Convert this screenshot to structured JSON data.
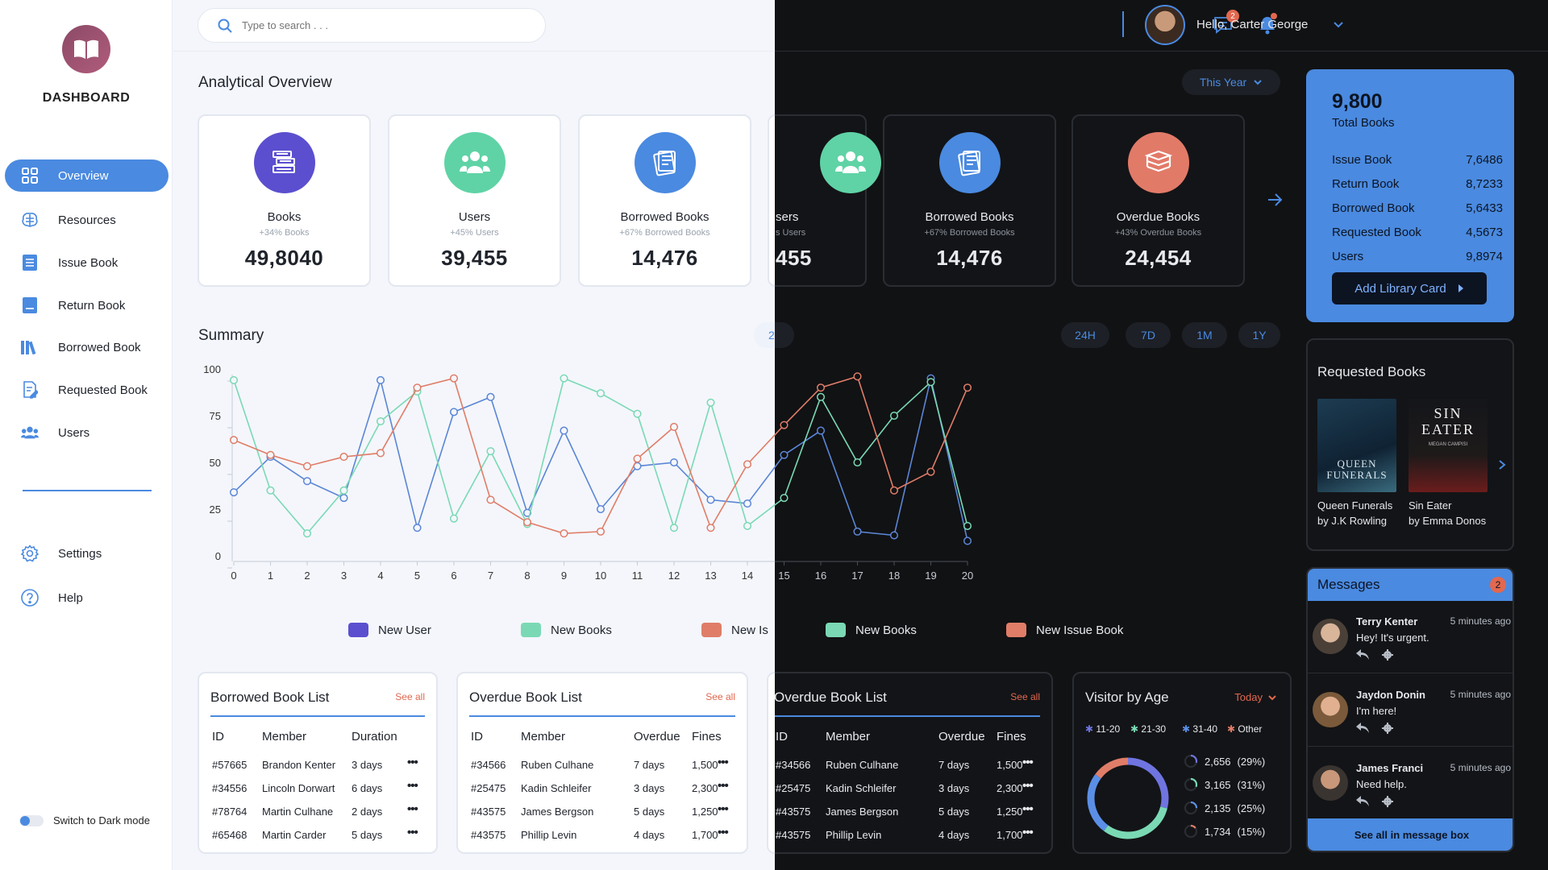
{
  "app": {
    "brand": "DASHBOARD",
    "toggle_label": "Switch to Dark mode"
  },
  "sidebar": {
    "items": [
      {
        "label": "Overview",
        "icon": "grid-icon"
      },
      {
        "label": "Resources",
        "icon": "brain-icon"
      },
      {
        "label": "Issue Book",
        "icon": "list-icon"
      },
      {
        "label": "Return Book",
        "icon": "book-return-icon"
      },
      {
        "label": "Borrowed Book",
        "icon": "library-icon"
      },
      {
        "label": "Requested Book",
        "icon": "edit-doc-icon"
      },
      {
        "label": "Users",
        "icon": "users-icon"
      },
      {
        "label": "Settings",
        "icon": "gear-icon"
      },
      {
        "label": "Help",
        "icon": "help-icon"
      }
    ]
  },
  "topbar": {
    "search_placeholder": "Type to search . . .",
    "greeting": "Hello, Carter George",
    "message_badge": "2"
  },
  "overview": {
    "title": "Analytical Overview",
    "period": "This Year",
    "cards": [
      {
        "label": "Books",
        "sub": "+34% Books",
        "value": "49,8040",
        "color": "#5b4fcf"
      },
      {
        "label": "Users",
        "sub": "+45% Users",
        "value": "39,455",
        "color": "#5fd3a6"
      },
      {
        "label": "Borrowed Books",
        "sub": "+67% Borrowed Books",
        "value": "14,476",
        "color": "#4a8ae0"
      },
      {
        "label": "Overdue Books",
        "sub": "+43% Overdue Books",
        "value": "24,454",
        "color": "#e27a68"
      }
    ],
    "dark_card_fragment": {
      "label": "sers",
      "sub": "s Users",
      "value": "455"
    }
  },
  "summary": {
    "title": "Summary",
    "ranges": [
      "24H",
      "7D",
      "1M",
      "1Y"
    ],
    "partial_range_char": "2"
  },
  "chart_data": {
    "type": "line",
    "title": "Summary",
    "x": [
      0,
      1,
      2,
      3,
      4,
      5,
      6,
      7,
      8,
      9,
      10,
      11,
      12,
      13,
      14,
      15,
      16,
      17,
      18,
      19,
      20
    ],
    "ylim": [
      0,
      100
    ],
    "yticks": [
      0,
      25,
      50,
      75,
      100
    ],
    "series": [
      {
        "name": "New User",
        "color": "#5b86d6",
        "values": [
          37,
          56,
          43,
          34,
          97,
          18,
          80,
          88,
          26,
          70,
          28,
          51,
          53,
          33,
          31,
          57,
          70,
          16,
          14,
          98,
          11
        ]
      },
      {
        "name": "New Books",
        "color": "#7ad9b4",
        "values": [
          97,
          38,
          15,
          38,
          75,
          91,
          23,
          59,
          20,
          98,
          90,
          79,
          18,
          85,
          19,
          34,
          88,
          53,
          78,
          96,
          19
        ]
      },
      {
        "name": "New Issue Book",
        "color": "#e07d68",
        "values": [
          65,
          57,
          51,
          56,
          58,
          93,
          98,
          33,
          21,
          15,
          16,
          55,
          72,
          18,
          52,
          73,
          93,
          99,
          38,
          48,
          93
        ]
      }
    ],
    "legend_visible": {
      "light": [
        "New User",
        "New Books",
        "New Is"
      ],
      "dark": [
        "New Books",
        "New Issue Book"
      ]
    }
  },
  "totals": {
    "value": "9,800",
    "caption": "Total Books",
    "rows": [
      {
        "label": "Issue Book",
        "value": "7,6486"
      },
      {
        "label": "Return Book",
        "value": "8,7233"
      },
      {
        "label": "Borrowed Book",
        "value": "5,6433"
      },
      {
        "label": "Requested Book",
        "value": "4,5673"
      },
      {
        "label": "Users",
        "value": "9,8974"
      }
    ],
    "button": "Add Library Card"
  },
  "requested": {
    "title": "Requested Books",
    "books": [
      {
        "title": "Queen Funerals",
        "author": "by J.K Rowling",
        "cover_text": "QUEEN\nFUNERALS"
      },
      {
        "title": "Sin Eater",
        "author": "by Emma Donos",
        "cover_text": "SIN\nEATER",
        "cover_sub": "MEGAN CAMPISI"
      }
    ]
  },
  "messages": {
    "title": "Messages",
    "badge": "2",
    "items": [
      {
        "name": "Terry Kenter",
        "time": "5 minutes ago",
        "text": "Hey! It's urgent."
      },
      {
        "name": "Jaydon Donin",
        "time": "5 minutes ago",
        "text": "I'm here!"
      },
      {
        "name": "James Franci",
        "time": "5 minutes ago",
        "text": "Need help."
      }
    ],
    "see_all": "See all in message box"
  },
  "borrowed_list": {
    "title": "Borrowed Book List",
    "see_all": "See all",
    "headers": [
      "ID",
      "Member",
      "Duration"
    ],
    "rows": [
      [
        "#57665",
        "Brandon Kenter",
        "3 days"
      ],
      [
        "#34556",
        "Lincoln Dorwart",
        "6 days"
      ],
      [
        "#78764",
        "Martin Culhane",
        "2 days"
      ],
      [
        "#65468",
        "Martin Carder",
        "5 days"
      ]
    ]
  },
  "overdue_list": {
    "title": "Overdue Book List",
    "see_all": "See all",
    "headers": [
      "ID",
      "Member",
      "Overdue",
      "Fines"
    ],
    "rows": [
      [
        "#34566",
        "Ruben Culhane",
        "7 days",
        "1,500"
      ],
      [
        "#25475",
        "Kadin Schleifer",
        "3 days",
        "2,300"
      ],
      [
        "#43575",
        "James Bergson",
        "5 days",
        "1,250"
      ],
      [
        "#43575",
        "Phillip Levin",
        "4 days",
        "1,700"
      ]
    ]
  },
  "visitor": {
    "title": "Visitor by Age",
    "period": "Today",
    "legend": [
      {
        "label": "11-20",
        "color": "#6f74e0"
      },
      {
        "label": "21-30",
        "color": "#7ad9b4"
      },
      {
        "label": "31-40",
        "color": "#5b8fe6"
      },
      {
        "label": "Other",
        "color": "#e07d68"
      }
    ],
    "rows": [
      {
        "value": "2,656",
        "pct": "(29%)",
        "share": 29,
        "color": "#6f74e0"
      },
      {
        "value": "3,165",
        "pct": "(31%)",
        "share": 31,
        "color": "#7ad9b4"
      },
      {
        "value": "2,135",
        "pct": "(25%)",
        "share": 25,
        "color": "#5b8fe6"
      },
      {
        "value": "1,734",
        "pct": "(15%)",
        "share": 15,
        "color": "#e07d68"
      }
    ]
  }
}
